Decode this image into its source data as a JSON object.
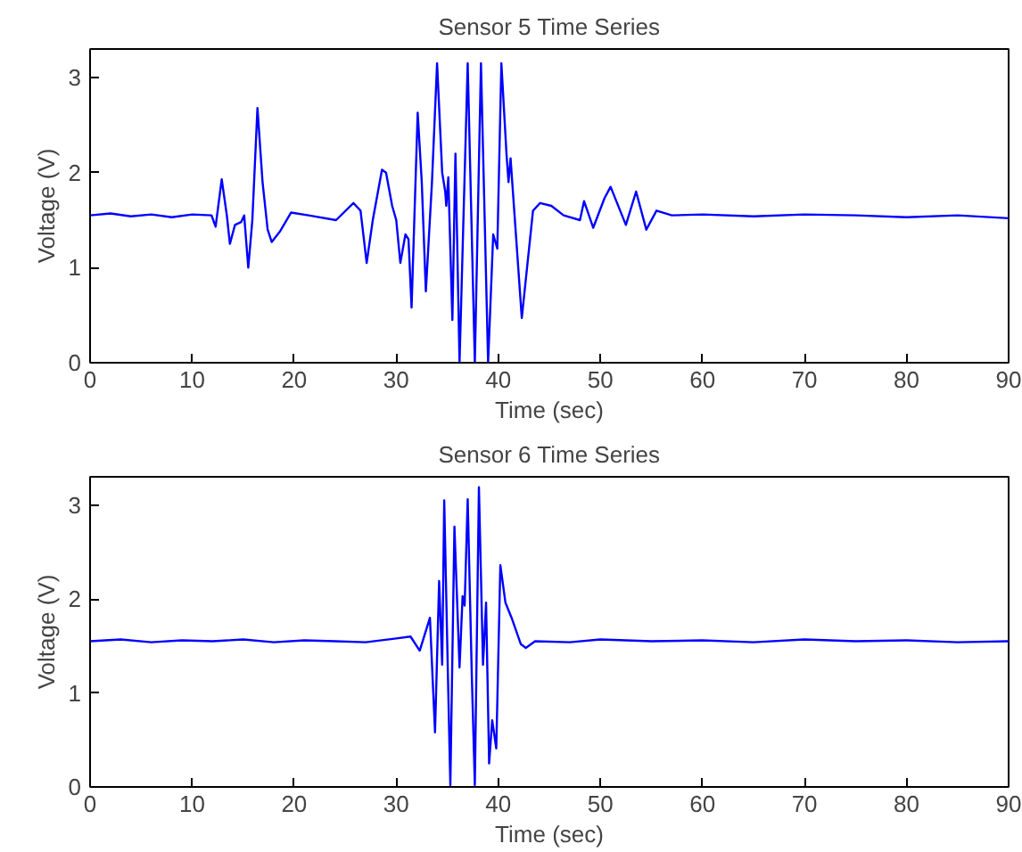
{
  "chart_data": [
    {
      "type": "line",
      "title": "Sensor 5 Time Series",
      "xlabel": "Time (sec)",
      "ylabel": "Voltage (V)",
      "xlim": [
        0,
        90
      ],
      "ylim": [
        0,
        3.3
      ],
      "xticks": [
        0,
        10,
        20,
        30,
        40,
        50,
        60,
        70,
        80,
        90
      ],
      "yticks": [
        0,
        1,
        2,
        3
      ],
      "grid": false,
      "marker": "none",
      "line_style": "solid",
      "series": [
        {
          "color": "#0000ff",
          "x": [
            0,
            2,
            4,
            6,
            8,
            10,
            11.9,
            12.3,
            12.9,
            13.4,
            13.7,
            14.2,
            14.8,
            15.1,
            15.5,
            15.9,
            16.4,
            16.9,
            17.4,
            17.8,
            18.6,
            19.7,
            21.4,
            24.1,
            25.8,
            26.5,
            27.1,
            27.7,
            28.6,
            29,
            29.6,
            30,
            30.4,
            30.9,
            31.2,
            31.5,
            32.1,
            32.5,
            32.9,
            33.5,
            34,
            34.5,
            34.8,
            34.9,
            35.1,
            35.5,
            35.8,
            36.2,
            37,
            37.7,
            38.3,
            39,
            39.5,
            39.9,
            40.3,
            40.8,
            41,
            41.2,
            42.3,
            43.4,
            44.1,
            45.2,
            46.4,
            48,
            48.4,
            49.3,
            50.4,
            51,
            52.5,
            53.5,
            54.5,
            55.5,
            57,
            60,
            65,
            70,
            75,
            80,
            85,
            90
          ],
          "values": [
            1.55,
            1.57,
            1.54,
            1.56,
            1.53,
            1.56,
            1.55,
            1.43,
            1.93,
            1.55,
            1.25,
            1.45,
            1.48,
            1.55,
            1.0,
            1.5,
            2.68,
            1.9,
            1.4,
            1.27,
            1.38,
            1.58,
            1.55,
            1.5,
            1.68,
            1.6,
            1.05,
            1.5,
            2.03,
            2.0,
            1.65,
            1.5,
            1.05,
            1.35,
            1.3,
            0.58,
            2.63,
            1.9,
            0.75,
            1.9,
            3.15,
            2.0,
            1.8,
            1.65,
            1.95,
            0.45,
            2.2,
            0.0,
            3.15,
            0.0,
            3.15,
            0.0,
            1.35,
            1.2,
            3.15,
            2.2,
            1.9,
            2.15,
            0.47,
            1.6,
            1.68,
            1.65,
            1.55,
            1.5,
            1.7,
            1.42,
            1.73,
            1.85,
            1.45,
            1.8,
            1.4,
            1.6,
            1.55,
            1.56,
            1.54,
            1.56,
            1.55,
            1.53,
            1.55,
            1.52
          ]
        }
      ]
    },
    {
      "type": "line",
      "title": "Sensor 6 Time Series",
      "xlabel": "Time (sec)",
      "ylabel": "Voltage (V)",
      "xlim": [
        0,
        90
      ],
      "ylim": [
        0,
        3.3
      ],
      "xticks": [
        0,
        10,
        20,
        30,
        40,
        50,
        60,
        70,
        80,
        90
      ],
      "yticks": [
        0,
        1,
        2,
        3
      ],
      "grid": false,
      "marker": "none",
      "line_style": "solid",
      "series": [
        {
          "color": "#0000ff",
          "x": [
            0,
            3,
            6,
            9,
            12,
            15,
            18,
            21,
            24,
            27,
            30,
            31.4,
            32.3,
            33.3,
            33.8,
            34.2,
            34.5,
            34.7,
            35.1,
            35.3,
            35.7,
            36.2,
            36.5,
            36.7,
            37,
            37.4,
            37.7,
            38.1,
            38.5,
            38.8,
            39.1,
            39.4,
            39.8,
            40.2,
            40.7,
            41.3,
            42.2,
            42.7,
            43.6,
            47,
            50,
            55,
            60,
            65,
            70,
            75,
            80,
            85,
            90
          ],
          "values": [
            1.55,
            1.57,
            1.54,
            1.56,
            1.55,
            1.57,
            1.54,
            1.56,
            1.55,
            1.54,
            1.58,
            1.6,
            1.45,
            1.8,
            0.58,
            2.19,
            1.3,
            3.05,
            1.0,
            0.02,
            2.77,
            1.27,
            2.03,
            1.93,
            3.06,
            1.2,
            0.02,
            3.19,
            1.3,
            1.96,
            0.25,
            0.71,
            0.41,
            2.36,
            1.96,
            1.8,
            1.52,
            1.48,
            1.55,
            1.54,
            1.57,
            1.55,
            1.56,
            1.54,
            1.57,
            1.55,
            1.56,
            1.54,
            1.55
          ]
        }
      ]
    }
  ]
}
